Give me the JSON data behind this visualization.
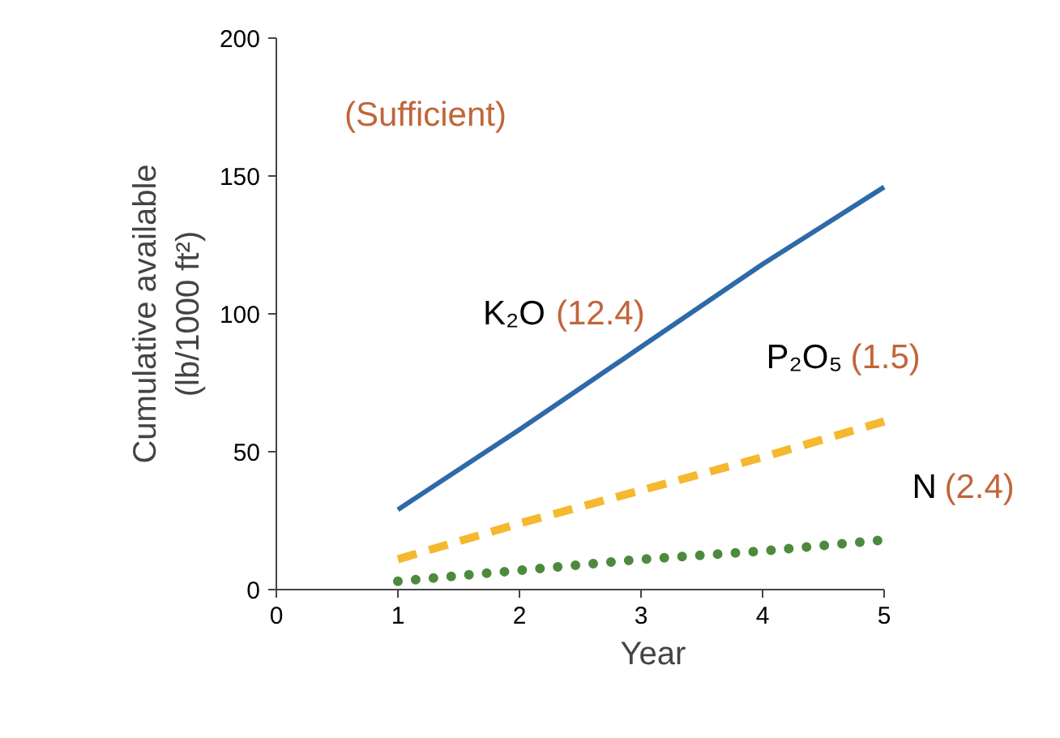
{
  "chart_data": {
    "type": "line",
    "xlabel": "Year",
    "ylabel": "Cumulative available\n(lb/1000 ft²)",
    "x": [
      1,
      2,
      3,
      4,
      5
    ],
    "xlim": [
      0,
      5
    ],
    "ylim": [
      0,
      200
    ],
    "xticks": [
      0,
      1,
      2,
      3,
      4,
      5
    ],
    "yticks": [
      0,
      50,
      100,
      150,
      200
    ],
    "series": [
      {
        "name": "K₂O",
        "color": "#2e6aa8",
        "line_style": "solid",
        "values": [
          29,
          58,
          88,
          118,
          146
        ]
      },
      {
        "name": "P₂O₅",
        "color": "#f5b82e",
        "line_style": "dashed",
        "values": [
          11,
          24,
          36,
          48,
          61
        ]
      },
      {
        "name": "N",
        "color": "#4e8a3e",
        "line_style": "dotted",
        "values": [
          3,
          7,
          11,
          14,
          18
        ]
      }
    ],
    "annotations": [
      "(Sufficient)",
      "(12.4)",
      "(1.5)",
      "(2.4)"
    ],
    "grid": false,
    "marker": "none"
  }
}
